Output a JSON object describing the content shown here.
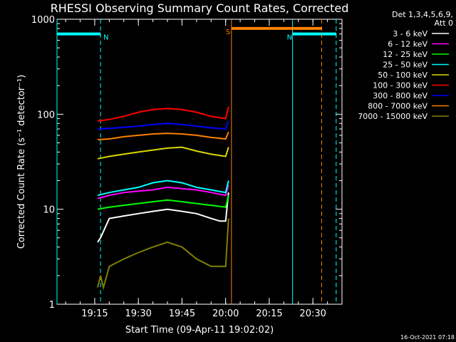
{
  "chart_data": {
    "type": "line",
    "title": "RHESSI Observing Summary Count Rates, Corrected",
    "xlabel": "Start Time (09-Apr-11 19:02:02)",
    "ylabel": "Corrected Count Rate (s⁻¹ detector⁻¹)",
    "y_scale": "log",
    "ylim": [
      1,
      1000
    ],
    "xlim": [
      "19:02:02",
      "20:40:00"
    ],
    "x_ticks": [
      "19:15",
      "19:30",
      "19:45",
      "20:00",
      "20:15",
      "20:30"
    ],
    "y_ticks": [
      "1",
      "10",
      "100",
      "1000"
    ],
    "legend_header": [
      "Det 1,3,4,5,6,9,",
      "Att 0"
    ],
    "legend_placement": "right",
    "footer_date": "16-Oct-2021 07:18",
    "series": [
      {
        "name": "3 - 6 keV",
        "color": "#ffffff",
        "x": [
          "19:16",
          "19:17",
          "19:20",
          "19:25",
          "19:30",
          "19:35",
          "19:40",
          "19:45",
          "19:50",
          "19:55",
          "19:58",
          "20:00",
          "20:01"
        ],
        "values": [
          4.5,
          5,
          8,
          8.5,
          9,
          9.5,
          10,
          9.5,
          9,
          8,
          7.5,
          7.5,
          15
        ]
      },
      {
        "name": "6 - 12 keV",
        "color": "#ff00ff",
        "x": [
          "19:16",
          "19:20",
          "19:25",
          "19:30",
          "19:35",
          "19:40",
          "19:45",
          "19:50",
          "19:55",
          "20:00",
          "20:01"
        ],
        "values": [
          13,
          14,
          15,
          15.5,
          16,
          17,
          16.5,
          16,
          15,
          14,
          18
        ]
      },
      {
        "name": "12 - 25 keV",
        "color": "#00ff00",
        "x": [
          "19:16",
          "19:20",
          "19:25",
          "19:30",
          "19:35",
          "19:40",
          "19:45",
          "19:50",
          "19:55",
          "20:00",
          "20:01"
        ],
        "values": [
          10,
          10.5,
          11,
          11.5,
          12,
          12.5,
          12,
          11.5,
          11,
          10.5,
          14
        ]
      },
      {
        "name": "25 - 50 keV",
        "color": "#00ffff",
        "x": [
          "19:16",
          "19:20",
          "19:25",
          "19:30",
          "19:35",
          "19:40",
          "19:45",
          "19:50",
          "19:55",
          "20:00",
          "20:01"
        ],
        "values": [
          14,
          15,
          16,
          17,
          19,
          20,
          19,
          17,
          16,
          15,
          20
        ]
      },
      {
        "name": "50 - 100 keV",
        "color": "#d8d800",
        "x": [
          "19:16",
          "19:20",
          "19:25",
          "19:30",
          "19:35",
          "19:40",
          "19:45",
          "19:50",
          "19:55",
          "20:00",
          "20:01"
        ],
        "values": [
          34,
          36,
          38,
          40,
          42,
          44,
          45,
          41,
          38,
          36,
          45
        ]
      },
      {
        "name": "100 - 300 keV",
        "color": "#ff0000",
        "x": [
          "19:16",
          "19:20",
          "19:25",
          "19:30",
          "19:35",
          "19:40",
          "19:45",
          "19:50",
          "19:55",
          "20:00",
          "20:01"
        ],
        "values": [
          85,
          88,
          95,
          105,
          112,
          115,
          112,
          105,
          95,
          90,
          120
        ]
      },
      {
        "name": "300 - 800 keV",
        "color": "#0000ff",
        "x": [
          "19:16",
          "19:20",
          "19:25",
          "19:30",
          "19:35",
          "19:40",
          "19:45",
          "19:50",
          "19:55",
          "20:00",
          "20:01"
        ],
        "values": [
          70,
          71,
          73,
          75,
          78,
          80,
          78,
          75,
          72,
          70,
          85
        ]
      },
      {
        "name": "800 - 7000 keV",
        "color": "#ff8000",
        "x": [
          "19:16",
          "19:20",
          "19:25",
          "19:30",
          "19:35",
          "19:40",
          "19:45",
          "19:50",
          "19:55",
          "20:00",
          "20:01"
        ],
        "values": [
          54,
          55,
          58,
          60,
          62,
          63,
          62,
          60,
          57,
          55,
          65
        ]
      },
      {
        "name": "7000 - 15000 keV",
        "color": "#808000",
        "x": [
          "19:16",
          "19:17",
          "19:18",
          "19:20",
          "19:25",
          "19:30",
          "19:35",
          "19:40",
          "19:45",
          "19:50",
          "19:55",
          "20:00",
          "20:01"
        ],
        "values": [
          1.5,
          2,
          1.5,
          2.5,
          3,
          3.5,
          4,
          4.5,
          4,
          3,
          2.5,
          2.5,
          8
        ]
      }
    ],
    "annotations": [
      {
        "label": "N",
        "color": "#00ffff",
        "type": "bar",
        "x_start": "19:02:02",
        "x_end": "19:17",
        "y": 700
      },
      {
        "label": "N",
        "color": "#00ffff",
        "type": "bar",
        "x_start": "20:23",
        "x_end": "20:38",
        "y": 700
      },
      {
        "label": "S",
        "color": "#ff8000",
        "type": "bar",
        "x_start": "20:02",
        "x_end": "20:33",
        "y": 800
      }
    ]
  }
}
